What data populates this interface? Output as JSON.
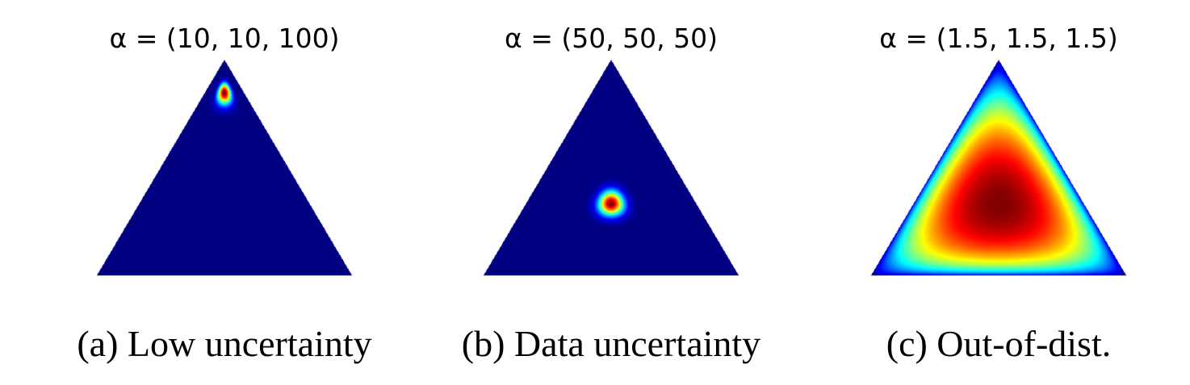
{
  "chart_data": [
    {
      "type": "heatmap",
      "title": "α = (10, 10, 100)",
      "caption": "(a) Low uncertainty",
      "alpha": [
        10,
        10,
        100
      ],
      "colormap": "jet",
      "domain": "probability simplex (triangle)"
    },
    {
      "type": "heatmap",
      "title": "α = (50, 50, 50)",
      "caption": "(b) Data uncertainty",
      "alpha": [
        50,
        50,
        50
      ],
      "colormap": "jet",
      "domain": "probability simplex (triangle)"
    },
    {
      "type": "heatmap",
      "title": "α = (1.5, 1.5, 1.5)",
      "caption": "(c) Out-of-dist.",
      "alpha": [
        1.5,
        1.5,
        1.5
      ],
      "colormap": "jet",
      "domain": "probability simplex (triangle)"
    }
  ]
}
